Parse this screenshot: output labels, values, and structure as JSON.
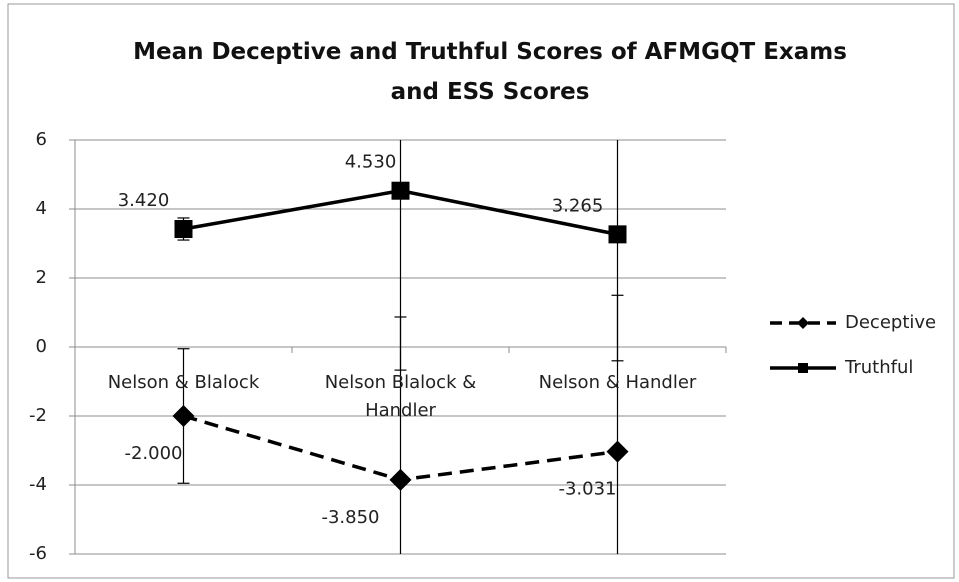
{
  "chart_data": {
    "type": "line",
    "title": "Mean Deceptive and Truthful Scores of AFMGQT Exams and ESS Scores",
    "categories": [
      "Nelson & Blalock",
      "Nelson Blalock & Handler",
      "Nelson & Handler"
    ],
    "series": [
      {
        "name": "Deceptive",
        "color": "#000000",
        "marker": "diamond",
        "dash": true,
        "values": [
          -2.0,
          -3.85,
          -3.031
        ],
        "value_labels": [
          "-2.000",
          "-3.850",
          "-3.031"
        ],
        "errors": [
          1.95,
          4.72,
          4.53
        ]
      },
      {
        "name": "Truthful",
        "color": "#000000",
        "marker": "square",
        "dash": false,
        "values": [
          3.42,
          4.53,
          3.265
        ],
        "value_labels": [
          "3.420",
          "4.530",
          "3.265"
        ],
        "errors": [
          0.32,
          5.2,
          3.665
        ]
      }
    ],
    "ylim": [
      -6,
      6
    ],
    "yticks": [
      -6,
      -4,
      -2,
      0,
      2,
      4,
      6
    ],
    "grid": true,
    "legend": "right"
  }
}
